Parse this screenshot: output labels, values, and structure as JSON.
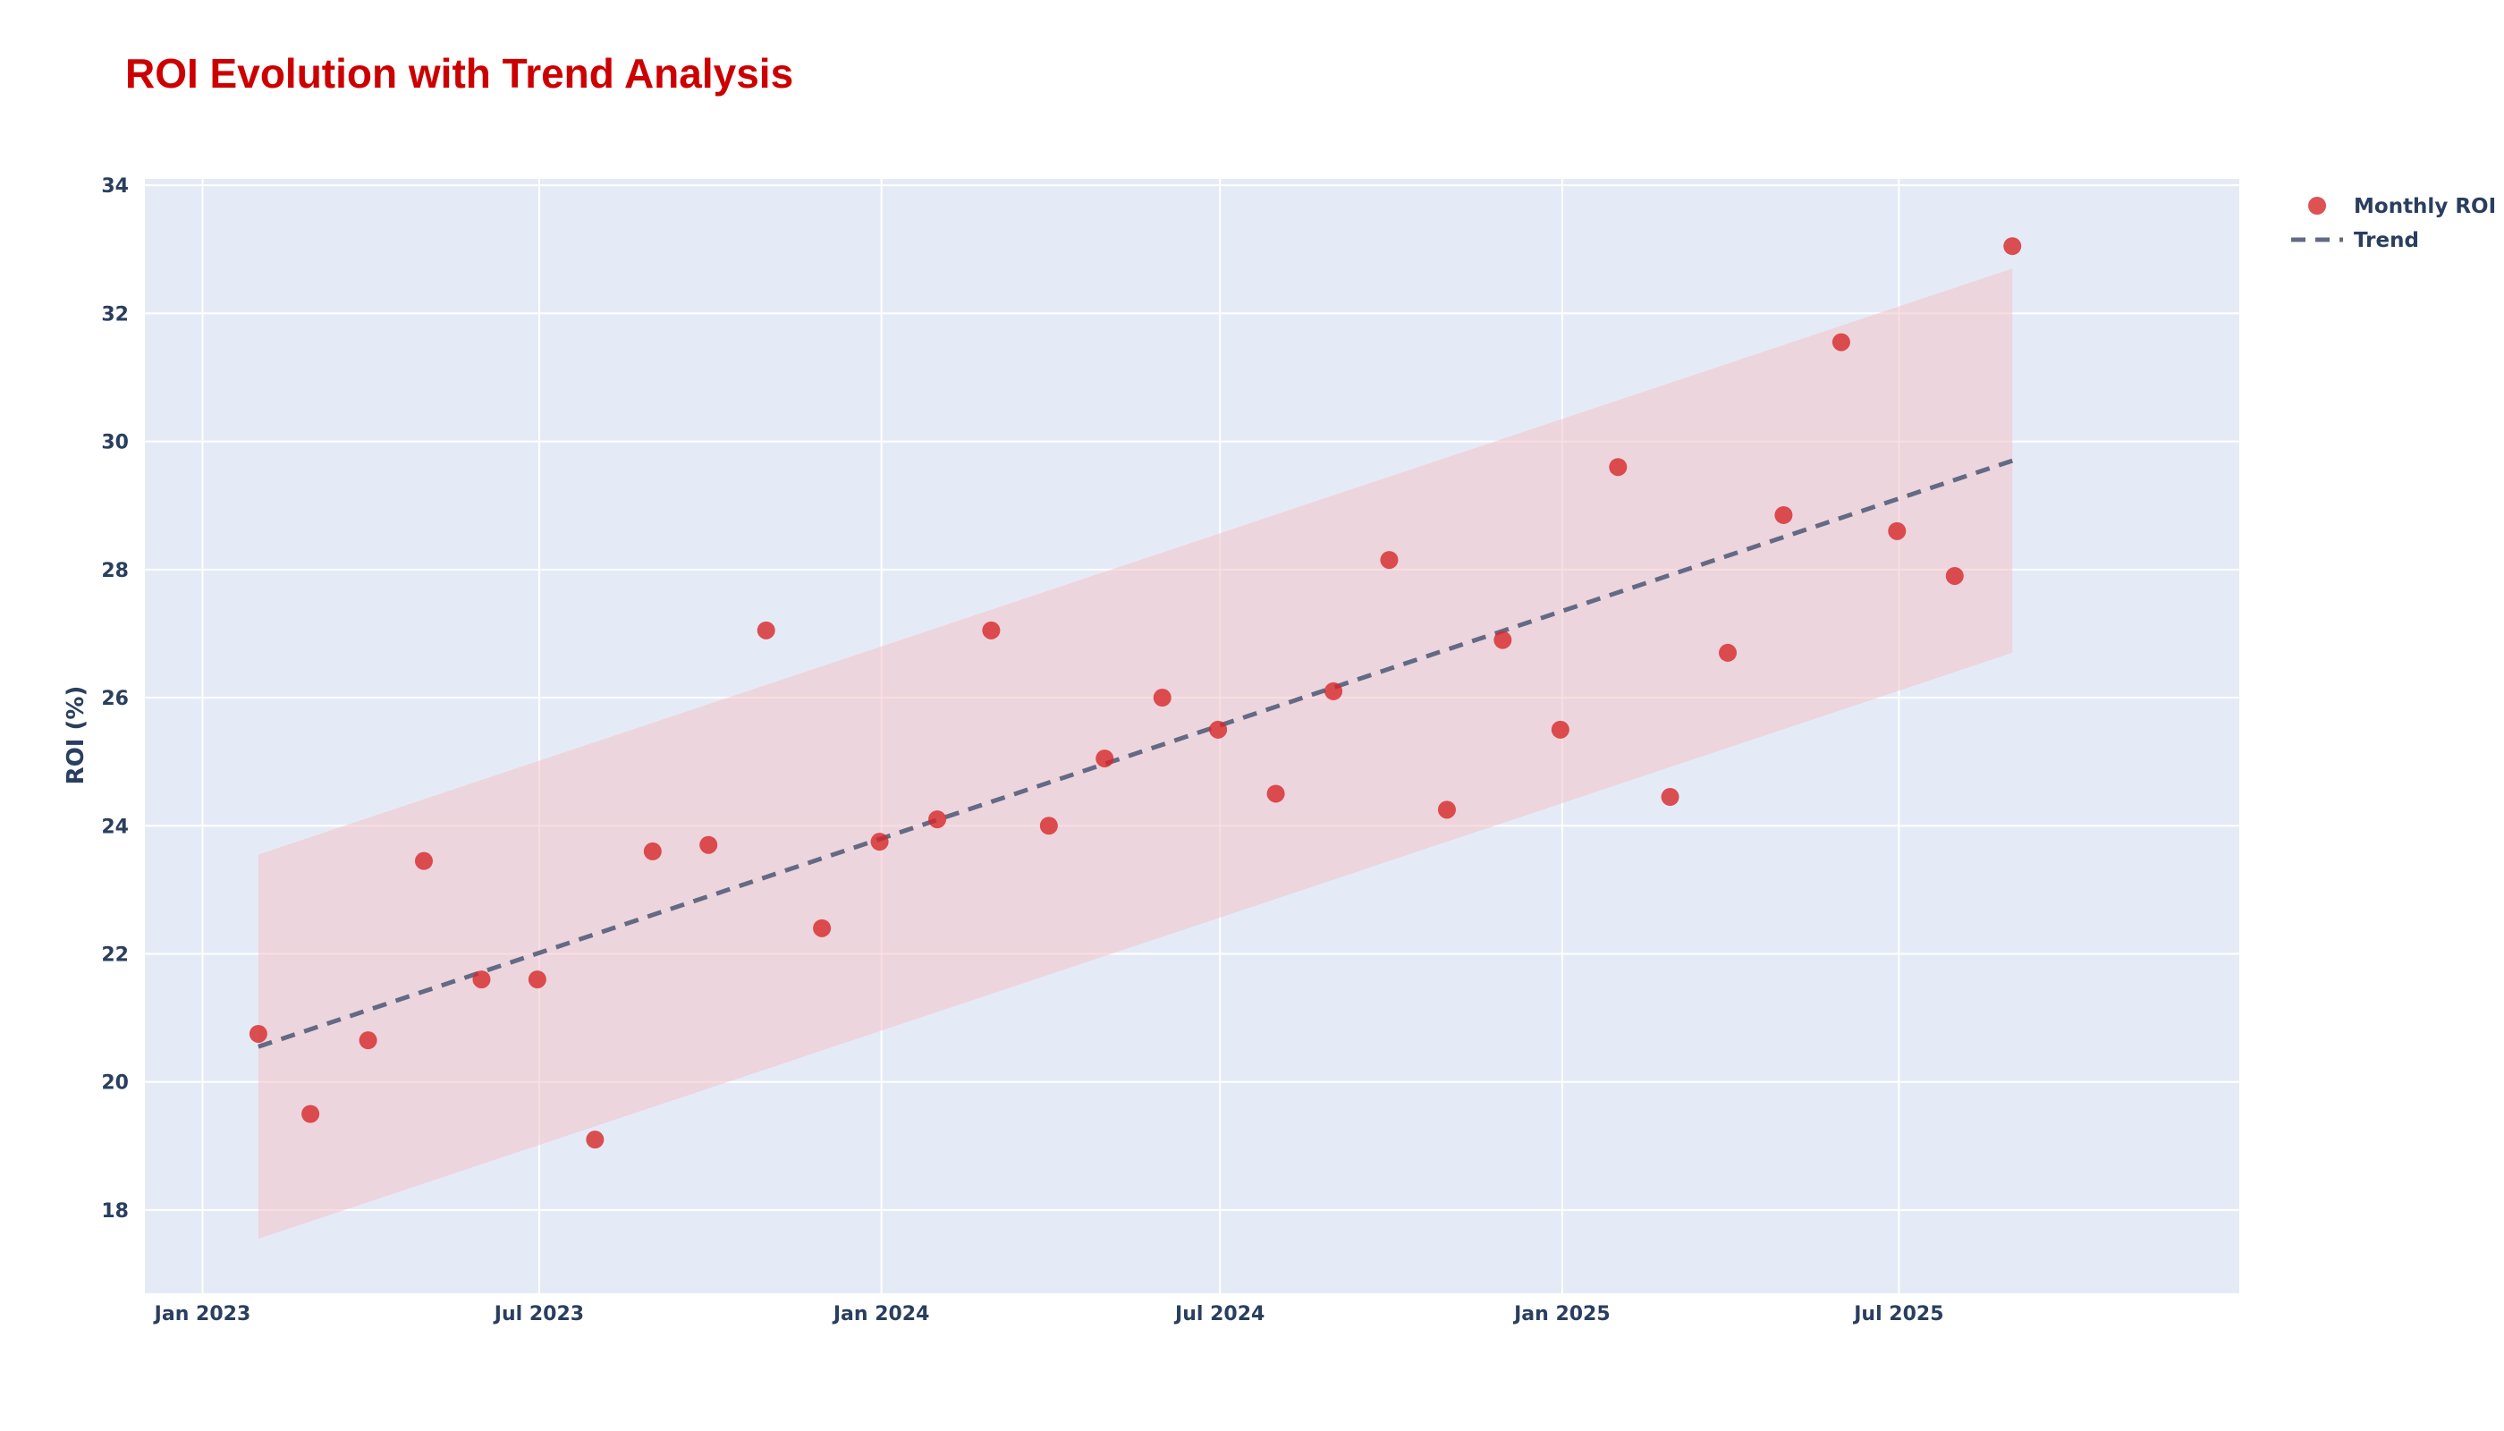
{
  "chart_data": {
    "type": "scatter",
    "title": "ROI Evolution with Trend Analysis",
    "xlabel": "",
    "ylabel": "ROI (%)",
    "x_ticks": [
      "Jan 2023",
      "Jul 2023",
      "Jan 2024",
      "Jul 2024",
      "Jan 2025",
      "Jul 2025"
    ],
    "x_tick_dates": [
      "2023-01-01",
      "2023-07-01",
      "2024-01-01",
      "2024-07-01",
      "2025-01-01",
      "2025-07-01"
    ],
    "xlim": [
      "2022-12-01",
      "2025-12-31"
    ],
    "y_ticks": [
      18,
      20,
      22,
      24,
      26,
      28,
      30,
      32,
      34
    ],
    "ylim": [
      16.7,
      34.1
    ],
    "grid": true,
    "legend_position": "top-right",
    "colors": {
      "points": "#d62728",
      "trend": "#636a84",
      "band": "#f4c2c8",
      "plot_bg": "#e5ebf6",
      "title": "#cc0000",
      "text": "#2a3f5f"
    },
    "series": [
      {
        "name": "Monthly ROI",
        "kind": "markers",
        "x": [
          "2023-01-31",
          "2023-02-28",
          "2023-03-31",
          "2023-04-30",
          "2023-05-31",
          "2023-06-30",
          "2023-07-31",
          "2023-08-31",
          "2023-09-30",
          "2023-10-31",
          "2023-11-30",
          "2023-12-31",
          "2024-01-31",
          "2024-02-29",
          "2024-03-31",
          "2024-04-30",
          "2024-05-31",
          "2024-06-30",
          "2024-07-31",
          "2024-08-31",
          "2024-09-30",
          "2024-10-31",
          "2024-11-30",
          "2024-12-31",
          "2025-01-31",
          "2025-02-28",
          "2025-03-31",
          "2025-04-30",
          "2025-05-31",
          "2025-06-30",
          "2025-07-31",
          "2025-08-31"
        ],
        "y": [
          20.75,
          19.5,
          20.65,
          23.45,
          21.6,
          21.6,
          19.1,
          23.6,
          23.7,
          27.05,
          22.4,
          23.75,
          24.1,
          27.05,
          24.0,
          25.05,
          26.0,
          25.5,
          24.5,
          26.1,
          28.15,
          24.25,
          26.9,
          25.5,
          29.6,
          24.45,
          26.7,
          28.85,
          31.55,
          28.6,
          27.9,
          33.05
        ]
      },
      {
        "name": "Trend",
        "kind": "dashed-line",
        "x": [
          "2023-01-31",
          "2025-08-31"
        ],
        "y": [
          20.55,
          29.7
        ]
      }
    ],
    "band": {
      "x": [
        "2023-01-31",
        "2025-08-31"
      ],
      "upper": [
        23.55,
        32.7
      ],
      "lower": [
        17.55,
        26.7
      ]
    }
  }
}
